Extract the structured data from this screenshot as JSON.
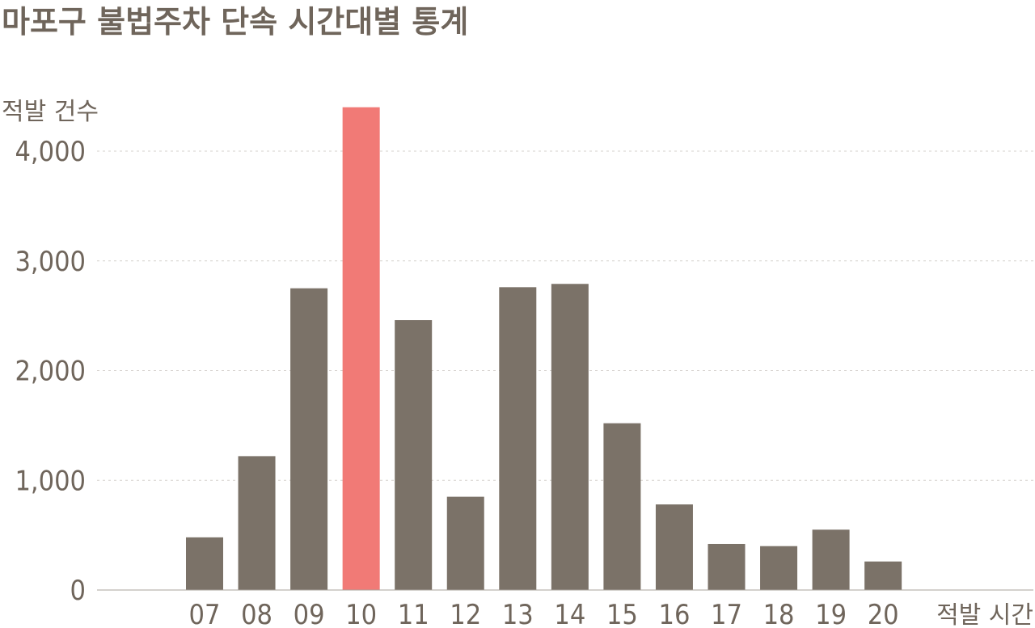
{
  "chart_data": {
    "type": "bar",
    "title": "마포구 불법주차 단속 시간대별 통계",
    "ylabel": "적발 건수",
    "xlabel": "적발 시간",
    "categories": [
      "07",
      "08",
      "09",
      "10",
      "11",
      "12",
      "13",
      "14",
      "15",
      "16",
      "17",
      "18",
      "19",
      "20"
    ],
    "values": [
      480,
      1220,
      2750,
      4400,
      2460,
      850,
      2760,
      2790,
      1520,
      780,
      420,
      400,
      550,
      260
    ],
    "highlight_category": "10",
    "yticks": [
      0,
      1000,
      2000,
      3000,
      4000
    ],
    "ytick_labels": [
      "0",
      "1,000",
      "2,000",
      "3,000",
      "4,000"
    ],
    "ylim": [
      0,
      4500
    ],
    "grid": true,
    "colors": {
      "bar": "#7b7268",
      "highlight": "#f17a76",
      "text": "#6f655b",
      "grid": "#d6d2ce"
    }
  }
}
